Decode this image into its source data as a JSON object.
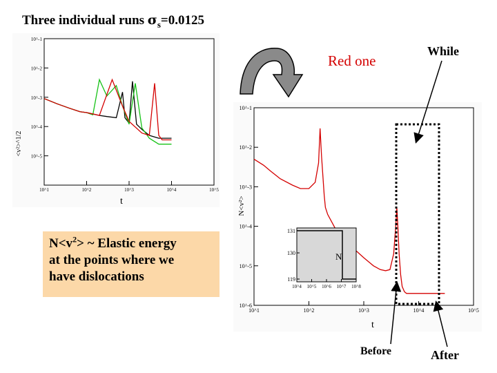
{
  "slide": {
    "title_prefix": "Three individual runs ",
    "title_sigma": "σ",
    "title_sub": "s",
    "title_suffix": "=0.0125",
    "label_red": "Red one",
    "label_while": "While",
    "label_before": "Before",
    "label_after": "After",
    "note_line1_a": "N<v",
    "note_line1_sup": "2",
    "note_line1_b": "> ~ Elastic energy",
    "note_line2": "at the points where we",
    "note_line3": "have dislocations",
    "colors": {
      "red_series": "#d40000",
      "note_bg": "#fcd8a8",
      "arrow_fill": "#8a8a8a",
      "inset_bg": "#d8d8d8"
    }
  },
  "chart_data": [
    {
      "id": "small",
      "type": "line",
      "x_scale": "log",
      "y_scale": "log",
      "xlim": [
        10,
        100000
      ],
      "ylim": [
        1e-06,
        0.1
      ],
      "xlabel": "t",
      "ylabel": "<v²>^1/2",
      "x_ticks": [
        "10^1",
        "10^2",
        "10^3",
        "10^4",
        "10^5"
      ],
      "y_ticks": [
        "10^-1",
        "10^-2",
        "10^-3",
        "10^-4",
        "10^-5"
      ],
      "series": [
        {
          "color": "#000000",
          "x": [
            10,
            20,
            40,
            70,
            100,
            200,
            300,
            500,
            700,
            800,
            1000,
            1200,
            1500,
            2000,
            3000,
            5000,
            10000
          ],
          "y": [
            0.0009,
            0.0006,
            0.00042,
            0.00032,
            0.0003,
            0.00024,
            0.00022,
            0.0002,
            0.0015,
            0.0002,
            0.00013,
            0.0035,
            0.00012,
            8e-05,
            5e-05,
            4e-05,
            4e-05
          ]
        },
        {
          "color": "#16c216",
          "x": [
            10,
            20,
            40,
            70,
            100,
            140,
            200,
            300,
            500,
            700,
            1000,
            1400,
            2000,
            3000,
            5000,
            10000
          ],
          "y": [
            0.0009,
            0.0006,
            0.00042,
            0.00032,
            0.0003,
            0.00025,
            0.004,
            0.0011,
            0.0025,
            0.0005,
            0.00012,
            0.003,
            9e-05,
            4e-05,
            2.5e-05,
            2.5e-05
          ]
        },
        {
          "color": "#d40000",
          "x": [
            10,
            20,
            40,
            70,
            100,
            200,
            400,
            700,
            1000,
            2000,
            3000,
            4000,
            5000,
            6000,
            8000,
            10000
          ],
          "y": [
            0.0009,
            0.0006,
            0.00042,
            0.00032,
            0.0003,
            0.00024,
            0.004,
            0.0005,
            0.00015,
            6e-05,
            5e-05,
            0.003,
            5e-05,
            3.5e-05,
            3.5e-05,
            3.5e-05
          ]
        }
      ]
    },
    {
      "id": "large",
      "type": "line",
      "x_scale": "log",
      "y_scale": "log",
      "xlim": [
        10,
        100000
      ],
      "ylim": [
        1e-06,
        0.1
      ],
      "xlabel": "t",
      "ylabel": "N<v²>",
      "x_ticks": [
        "10^1",
        "10^2",
        "10^3",
        "10^4",
        "10^5"
      ],
      "y_ticks": [
        "10^-1",
        "10^-2",
        "10^-3",
        "10^-4",
        "10^-5",
        "10^-6"
      ],
      "series": [
        {
          "color": "#d40000",
          "x": [
            10,
            15,
            20,
            30,
            50,
            70,
            100,
            130,
            150,
            160,
            170,
            190,
            200,
            220,
            300,
            500,
            700,
            1000,
            1500,
            2000,
            2500,
            3000,
            3500,
            3800,
            4000,
            4200,
            4400,
            4700,
            5000,
            5500,
            6000,
            7000,
            10000,
            30000
          ],
          "y": [
            0.005,
            0.0035,
            0.0025,
            0.0016,
            0.0011,
            0.0009,
            0.0009,
            0.0013,
            0.004,
            0.03,
            0.006,
            0.0006,
            0.0003,
            0.0002,
            9e-05,
            4e-05,
            2.5e-05,
            1.6e-05,
            1e-05,
            8e-06,
            7.5e-06,
            8e-06,
            2e-05,
            9e-05,
            0.0003,
            9e-05,
            2e-05,
            6e-06,
            3e-06,
            2.2e-06,
            2e-06,
            2e-06,
            2e-06,
            2e-06
          ]
        }
      ],
      "inset": {
        "xlim": [
          10000,
          10000000
        ],
        "ylim": [
          119,
          131
        ],
        "x_ticks": [
          "10^4",
          "10^5",
          "10^6",
          "10^7",
          "10^8"
        ],
        "y_ticks": [
          "131",
          "130",
          "119"
        ],
        "ylabel": "N",
        "steps": [
          [
            10000,
            131
          ],
          [
            2000000,
            131
          ],
          [
            2000000,
            119
          ],
          [
            10000000,
            119
          ]
        ]
      }
    }
  ]
}
